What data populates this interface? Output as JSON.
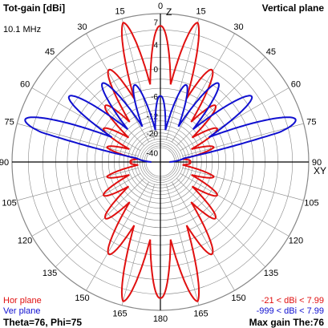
{
  "header": {
    "title": "Tot-gain [dBi]",
    "plane": "Vertical plane",
    "frequency": "10.1 MHz"
  },
  "axes": {
    "top_label": "Z",
    "right_label": "XY",
    "angle_labels": [
      "0",
      "15",
      "30",
      "45",
      "60",
      "75",
      "90",
      "105",
      "120",
      "135",
      "150",
      "165",
      "180",
      "165",
      "150",
      "135",
      "120",
      "105",
      "90",
      "75",
      "60",
      "45",
      "30",
      "15"
    ],
    "radial_ticks": [
      "7",
      "4",
      "0",
      "-6",
      "-12",
      "-20",
      "-40"
    ]
  },
  "legend": {
    "hor_label": "Hor plane",
    "ver_label": "Ver plane",
    "hor_range": "-21 < dBi < 7.99",
    "ver_range": "-999 < dBi < 7.99"
  },
  "footer": {
    "left": "Theta=76, Phi=75",
    "right": "Max gain The:76"
  },
  "colors": {
    "hor": "#e01010",
    "ver": "#1010d0",
    "grid": "#888888",
    "axis": "#000000"
  },
  "chart_data": {
    "type": "polar",
    "series": [
      {
        "name": "Hor plane",
        "shape": "mirrored lobes, largest lobes near 0 and 180 deg",
        "theta_deg": [
          0,
          15,
          30,
          45,
          60,
          75,
          90,
          105,
          120,
          135,
          150,
          165,
          180
        ],
        "gain_dbi": [
          6.5,
          7.5,
          2.0,
          -3.0,
          -6.0,
          -9.0,
          -20.0,
          -9.0,
          -6.0,
          -3.0,
          2.0,
          7.5,
          6.5
        ]
      },
      {
        "name": "Ver plane",
        "shape": "upper hemisphere lobes, main lobe at theta 76",
        "theta_deg": [
          0,
          15,
          30,
          45,
          60,
          75,
          76,
          90
        ],
        "gain_dbi": [
          -6.0,
          -3.0,
          0.0,
          2.0,
          4.0,
          7.9,
          7.99,
          -40.0
        ]
      }
    ],
    "max_gain_theta": 76
  }
}
